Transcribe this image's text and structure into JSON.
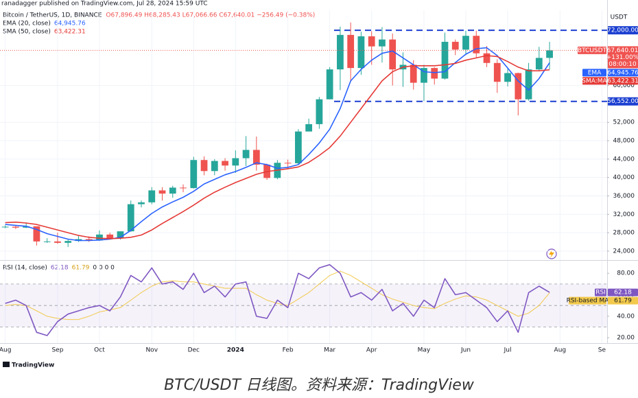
{
  "header": {
    "publisher": "ranadagger published on TradingView.com, Jul 28, 2024 15:59 UTC",
    "symbol": "Bitcoin / TetherUS, 1D, BINANCE",
    "ohlc": "O67,896.49 H68,285.43 L67,066.66 C67,640.01 −256.49 (−0.38%)",
    "ema": "EMA (20, close)",
    "sma": "SMA (50, close)",
    "rsi": "RSI (14, close)",
    "rsi_extra": "0 0 0 0"
  },
  "footer": {
    "logo": "TradingView",
    "caption": "BTC/USDT 日线图。资料来源：TradingView"
  },
  "chart_data": [
    {
      "type": "candlestick",
      "symbol": "BTCUSDT",
      "axis_unit": "USDT",
      "up_color": "#26a69a",
      "down_color": "#ef5350",
      "categories": [
        "Aug",
        null,
        null,
        null,
        null,
        "Sep",
        null,
        null,
        null,
        "Oct",
        null,
        null,
        null,
        null,
        "Nov",
        null,
        null,
        null,
        "Dec",
        null,
        null,
        null,
        "2024",
        null,
        null,
        null,
        null,
        "Feb",
        null,
        null,
        null,
        "Mar",
        null,
        null,
        null,
        "Apr",
        null,
        null,
        null,
        null,
        "May",
        null,
        null,
        null,
        "Jun",
        null,
        null,
        null,
        "Jul",
        null,
        null,
        null,
        null,
        "Aug",
        null,
        null,
        null,
        "Se"
      ],
      "open": [
        29200,
        29300,
        29100,
        29400,
        26100,
        26100,
        25800,
        26200,
        26600,
        26300,
        27600,
        26800,
        28300,
        34200,
        34600,
        37200,
        36500,
        37800,
        37700,
        43800,
        41400,
        43600,
        42600,
        44200,
        46000,
        42800,
        39900,
        43200,
        43100,
        50000,
        51600,
        57000,
        63500,
        71000,
        63800,
        70700,
        68500,
        70000,
        63500,
        64500,
        60600,
        63800,
        61500,
        69500,
        67800,
        70800,
        67000,
        64900,
        60800,
        62700,
        57000,
        63500,
        66000,
        null,
        null,
        null,
        null,
        null
      ],
      "high": [
        29600,
        29500,
        30200,
        29400,
        26800,
        28000,
        26500,
        27400,
        27200,
        28500,
        28000,
        28300,
        35000,
        35000,
        37900,
        37900,
        38200,
        38500,
        44500,
        44600,
        44000,
        44200,
        45900,
        49000,
        48900,
        43000,
        43800,
        43900,
        50500,
        52800,
        57500,
        64000,
        72800,
        73700,
        71700,
        71800,
        72700,
        71300,
        67200,
        65500,
        64500,
        64000,
        71500,
        70000,
        71900,
        71900,
        68600,
        65700,
        63800,
        62800,
        64900,
        68400,
        69500,
        null,
        null,
        null,
        null,
        null
      ],
      "low": [
        29000,
        28800,
        29000,
        25200,
        25800,
        25600,
        24900,
        26000,
        26000,
        26200,
        26600,
        26500,
        28200,
        33500,
        34200,
        35000,
        35600,
        36800,
        37600,
        40500,
        40500,
        41500,
        41000,
        42500,
        41500,
        39500,
        39600,
        41900,
        42800,
        50000,
        50600,
        57000,
        59000,
        60800,
        62300,
        64500,
        65000,
        60000,
        59700,
        59100,
        56600,
        60200,
        61300,
        66600,
        66600,
        66100,
        64000,
        58400,
        59800,
        53500,
        56700,
        63300,
        63500,
        null,
        null,
        null,
        null,
        null
      ],
      "close": [
        29300,
        29100,
        29400,
        26100,
        26100,
        25800,
        26200,
        26600,
        26300,
        27600,
        26800,
        28300,
        34200,
        34600,
        37200,
        36500,
        37800,
        37700,
        43800,
        41400,
        43600,
        42600,
        44200,
        46000,
        42800,
        39900,
        43200,
        43100,
        50000,
        51600,
        57000,
        63500,
        71000,
        63800,
        70700,
        68500,
        70000,
        63500,
        64500,
        60600,
        63800,
        61500,
        69500,
        67800,
        70800,
        67000,
        64900,
        60800,
        62700,
        57000,
        63500,
        66000,
        67640.01,
        null,
        null,
        null,
        null,
        null
      ],
      "close_labels": [
        null,
        null,
        null,
        null,
        null,
        null,
        null,
        null,
        null,
        null,
        null,
        null,
        null,
        null,
        null,
        null,
        null,
        null,
        null,
        null,
        null,
        null,
        null,
        null,
        null,
        null,
        null,
        null,
        null,
        null,
        null,
        null,
        null,
        null,
        null,
        null,
        null,
        null,
        null,
        null,
        null,
        null,
        null,
        null,
        null,
        null,
        null,
        null,
        null,
        null,
        null,
        null,
        "67,640.01",
        null,
        null,
        null,
        null,
        null
      ],
      "change_label": "+131.00%",
      "countdown": "08:00:10",
      "series": [
        {
          "name": "EMA",
          "color": "#2962ff",
          "values": [
            29800,
            29600,
            29400,
            28700,
            27800,
            27200,
            26600,
            26300,
            26300,
            26400,
            26600,
            27000,
            28500,
            30400,
            32200,
            33600,
            34700,
            35700,
            37000,
            38600,
            39600,
            40600,
            41300,
            42200,
            43200,
            42800,
            42000,
            42200,
            42800,
            45000,
            47500,
            50500,
            55000,
            61000,
            63500,
            65500,
            67000,
            67500,
            66000,
            64500,
            63000,
            62800,
            63000,
            65000,
            66800,
            68000,
            68200,
            66500,
            63800,
            61000,
            59000,
            61500,
            64945.76,
            null,
            null,
            null,
            null,
            null
          ],
          "value_labels": [
            null,
            null,
            null,
            null,
            null,
            null,
            null,
            null,
            null,
            null,
            null,
            null,
            null,
            null,
            null,
            null,
            null,
            null,
            null,
            null,
            null,
            null,
            null,
            null,
            null,
            null,
            null,
            null,
            null,
            null,
            null,
            null,
            null,
            null,
            null,
            null,
            null,
            null,
            null,
            null,
            null,
            null,
            null,
            null,
            null,
            null,
            null,
            null,
            null,
            null,
            null,
            null,
            "64,945.76",
            null,
            null,
            null,
            null,
            null
          ]
        },
        {
          "name": "SMA:MA",
          "color": "#e53935",
          "values": [
            30200,
            30300,
            30100,
            29800,
            29200,
            28600,
            28000,
            27400,
            27000,
            26800,
            26700,
            26800,
            27000,
            27500,
            28600,
            30000,
            31300,
            32600,
            34000,
            35500,
            36800,
            37900,
            38900,
            39800,
            40700,
            41300,
            41600,
            41900,
            42300,
            43300,
            44800,
            46500,
            49000,
            52000,
            55000,
            58000,
            61000,
            63000,
            64000,
            64300,
            64300,
            64300,
            64500,
            64800,
            65500,
            66000,
            66500,
            66300,
            65200,
            64000,
            63200,
            63200,
            63422.31,
            null,
            null,
            null,
            null,
            null
          ],
          "value_labels": [
            null,
            null,
            null,
            null,
            null,
            null,
            null,
            null,
            null,
            null,
            null,
            null,
            null,
            null,
            null,
            null,
            null,
            null,
            null,
            null,
            null,
            null,
            null,
            null,
            null,
            null,
            null,
            null,
            null,
            null,
            null,
            null,
            null,
            null,
            null,
            null,
            null,
            null,
            null,
            null,
            null,
            null,
            null,
            null,
            null,
            null,
            null,
            null,
            null,
            null,
            null,
            null,
            "63,422.31",
            null,
            null,
            null,
            null,
            null
          ]
        }
      ],
      "hlines": [
        {
          "value": 72000,
          "label": "72,000.00"
        },
        {
          "value": 56552,
          "label": "56,552.00"
        }
      ],
      "hline_color": "#1b3fd1",
      "ylim": [
        22200,
        76350
      ],
      "yticks": [
        {
          "value": 24000,
          "label": "24,000"
        },
        {
          "value": 28000,
          "label": "28,000"
        },
        {
          "value": 32000,
          "label": "32,000"
        },
        {
          "value": 36000,
          "label": "36,000"
        },
        {
          "value": 40000,
          "label": "40,000"
        },
        {
          "value": 44000,
          "label": "44,000"
        },
        {
          "value": 48000,
          "label": "48,000"
        },
        {
          "value": 52000,
          "label": "52,000"
        },
        {
          "value": 60000,
          "label": "60,000"
        }
      ],
      "grid": true
    },
    {
      "type": "line",
      "band_color": "#7e57c2",
      "series": [
        {
          "name": "RSI",
          "color": "#7e57c2",
          "values": [
            52,
            55,
            50,
            25,
            22,
            35,
            42,
            45,
            48,
            50,
            45,
            58,
            78,
            72,
            85,
            70,
            72,
            65,
            80,
            62,
            68,
            58,
            70,
            72,
            40,
            38,
            55,
            48,
            80,
            75,
            85,
            88,
            80,
            58,
            62,
            55,
            65,
            45,
            52,
            40,
            55,
            48,
            75,
            60,
            62,
            55,
            48,
            35,
            45,
            25,
            62,
            68,
            62.18,
            null,
            null,
            null,
            null,
            null
          ]
        },
        {
          "name": "RSI-based MA",
          "color": "#f2c94c",
          "values": [
            50,
            51,
            50,
            45,
            40,
            38,
            37,
            37,
            40,
            44,
            46,
            48,
            55,
            62,
            68,
            72,
            73,
            72,
            72,
            70,
            68,
            66,
            66,
            66,
            60,
            55,
            52,
            50,
            56,
            62,
            70,
            78,
            82,
            78,
            72,
            66,
            60,
            56,
            53,
            50,
            48,
            47,
            52,
            56,
            59,
            58,
            55,
            50,
            45,
            40,
            43,
            50,
            61.79,
            null,
            null,
            null,
            null,
            null
          ]
        }
      ],
      "levels": [
        70,
        50,
        30
      ],
      "ylim": [
        15,
        91
      ],
      "yticks": [
        {
          "value": 20,
          "label": "20.00"
        },
        {
          "value": 40,
          "label": "40.00"
        },
        {
          "value": 60,
          "label": "60.00"
        },
        {
          "value": 80,
          "label": "80.00"
        }
      ]
    }
  ]
}
